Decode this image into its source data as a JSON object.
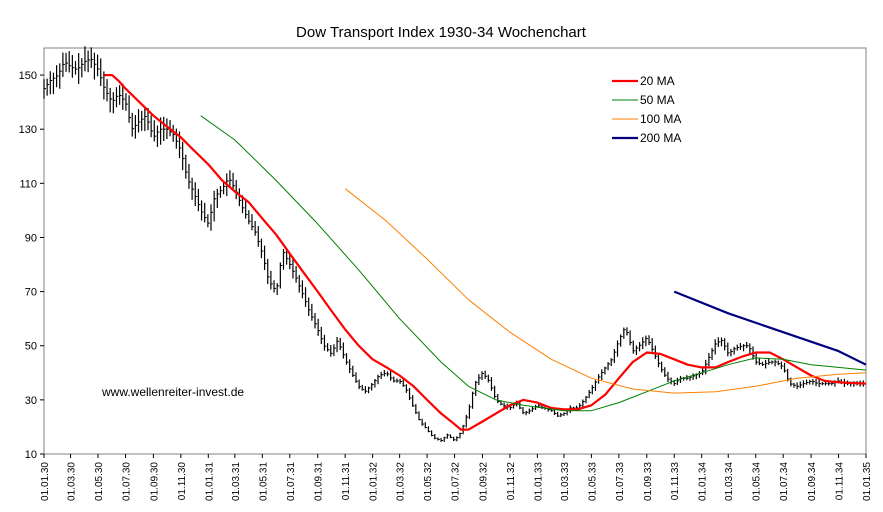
{
  "chart_data": {
    "type": "line",
    "title": "Dow Transport Index 1930-34 Wochenchart",
    "watermark": "www.wellenreiter-invest.de",
    "xlabel": "",
    "ylabel": "",
    "ylim": [
      10,
      160
    ],
    "yticks": [
      10,
      30,
      50,
      70,
      90,
      110,
      130,
      150
    ],
    "xlim": [
      "1930-01-01",
      "1935-01-01"
    ],
    "xticks": [
      "01.01.30",
      "01.03.30",
      "01.05.30",
      "01.07.30",
      "01.09.30",
      "01.11.30",
      "01.01.31",
      "01.03.31",
      "01.05.31",
      "01.07.31",
      "01.09.31",
      "01.11.31",
      "01.01.32",
      "01.03.32",
      "01.05.32",
      "01.07.32",
      "01.09.32",
      "01.11.32",
      "01.01.33",
      "01.03.33",
      "01.05.33",
      "01.07.33",
      "01.09.33",
      "01.11.33",
      "01.01.34",
      "01.03.34",
      "01.05.34",
      "01.07.34",
      "01.09.34",
      "01.11.34",
      "01.01.35"
    ],
    "grid": false,
    "legend": "top-right",
    "price_color": "#000000",
    "price": [
      [
        "1930-01-01",
        145
      ],
      [
        "1930-01-15",
        148
      ],
      [
        "1930-02-01",
        150
      ],
      [
        "1930-02-15",
        155
      ],
      [
        "1930-03-01",
        153
      ],
      [
        "1930-03-15",
        152
      ],
      [
        "1930-04-01",
        155
      ],
      [
        "1930-04-15",
        156
      ],
      [
        "1930-05-01",
        152
      ],
      [
        "1930-05-15",
        145
      ],
      [
        "1930-06-01",
        140
      ],
      [
        "1930-06-15",
        143
      ],
      [
        "1930-07-01",
        140
      ],
      [
        "1930-07-15",
        130
      ],
      [
        "1930-08-01",
        133
      ],
      [
        "1930-08-15",
        135
      ],
      [
        "1930-09-01",
        127
      ],
      [
        "1930-09-15",
        130
      ],
      [
        "1930-10-01",
        130
      ],
      [
        "1930-10-15",
        128
      ],
      [
        "1930-11-01",
        122
      ],
      [
        "1930-11-15",
        112
      ],
      [
        "1930-12-01",
        106
      ],
      [
        "1930-12-15",
        100
      ],
      [
        "1931-01-01",
        95
      ],
      [
        "1931-01-15",
        105
      ],
      [
        "1931-02-01",
        108
      ],
      [
        "1931-02-15",
        112
      ],
      [
        "1931-03-01",
        108
      ],
      [
        "1931-03-15",
        102
      ],
      [
        "1931-04-01",
        96
      ],
      [
        "1931-04-15",
        92
      ],
      [
        "1931-05-01",
        84
      ],
      [
        "1931-05-15",
        74
      ],
      [
        "1931-06-01",
        70
      ],
      [
        "1931-06-15",
        85
      ],
      [
        "1931-07-01",
        80
      ],
      [
        "1931-07-15",
        75
      ],
      [
        "1931-08-01",
        68
      ],
      [
        "1931-08-15",
        62
      ],
      [
        "1931-09-01",
        56
      ],
      [
        "1931-09-15",
        50
      ],
      [
        "1931-10-01",
        47
      ],
      [
        "1931-10-15",
        52
      ],
      [
        "1931-11-01",
        45
      ],
      [
        "1931-11-15",
        40
      ],
      [
        "1931-12-01",
        35
      ],
      [
        "1931-12-15",
        33
      ],
      [
        "1932-01-01",
        36
      ],
      [
        "1932-01-15",
        39
      ],
      [
        "1932-02-01",
        40
      ],
      [
        "1932-02-15",
        37
      ],
      [
        "1932-03-01",
        37
      ],
      [
        "1932-03-15",
        34
      ],
      [
        "1932-04-01",
        27
      ],
      [
        "1932-04-15",
        22
      ],
      [
        "1932-05-01",
        19
      ],
      [
        "1932-05-15",
        16
      ],
      [
        "1932-06-01",
        15
      ],
      [
        "1932-06-15",
        17
      ],
      [
        "1932-07-01",
        15
      ],
      [
        "1932-07-15",
        18
      ],
      [
        "1932-08-01",
        26
      ],
      [
        "1932-08-15",
        36
      ],
      [
        "1932-09-01",
        40
      ],
      [
        "1932-09-15",
        37
      ],
      [
        "1932-10-01",
        30
      ],
      [
        "1932-10-15",
        28
      ],
      [
        "1932-11-01",
        27
      ],
      [
        "1932-11-15",
        29
      ],
      [
        "1932-12-01",
        25
      ],
      [
        "1932-12-15",
        26
      ],
      [
        "1933-01-01",
        28
      ],
      [
        "1933-01-15",
        27
      ],
      [
        "1933-02-01",
        26
      ],
      [
        "1933-02-15",
        24
      ],
      [
        "1933-03-01",
        25
      ],
      [
        "1933-03-15",
        27
      ],
      [
        "1933-04-01",
        27
      ],
      [
        "1933-04-15",
        30
      ],
      [
        "1933-05-01",
        34
      ],
      [
        "1933-05-15",
        38
      ],
      [
        "1933-06-01",
        42
      ],
      [
        "1933-06-15",
        45
      ],
      [
        "1933-07-01",
        52
      ],
      [
        "1933-07-15",
        57
      ],
      [
        "1933-08-01",
        48
      ],
      [
        "1933-08-15",
        50
      ],
      [
        "1933-09-01",
        53
      ],
      [
        "1933-09-15",
        48
      ],
      [
        "1933-10-01",
        42
      ],
      [
        "1933-10-15",
        38
      ],
      [
        "1933-11-01",
        36
      ],
      [
        "1933-11-15",
        38
      ],
      [
        "1933-12-01",
        38
      ],
      [
        "1933-12-15",
        39
      ],
      [
        "1934-01-01",
        40
      ],
      [
        "1934-01-15",
        45
      ],
      [
        "1934-02-01",
        51
      ],
      [
        "1934-02-15",
        52
      ],
      [
        "1934-03-01",
        47
      ],
      [
        "1934-03-15",
        49
      ],
      [
        "1934-04-01",
        50
      ],
      [
        "1934-04-15",
        50
      ],
      [
        "1934-05-01",
        44
      ],
      [
        "1934-05-15",
        43
      ],
      [
        "1934-06-01",
        44
      ],
      [
        "1934-06-15",
        44
      ],
      [
        "1934-07-01",
        42
      ],
      [
        "1934-07-15",
        36
      ],
      [
        "1934-08-01",
        35
      ],
      [
        "1934-08-15",
        36
      ],
      [
        "1934-09-01",
        37
      ],
      [
        "1934-09-15",
        36
      ],
      [
        "1934-10-01",
        36
      ],
      [
        "1934-10-15",
        36
      ],
      [
        "1934-11-01",
        37
      ],
      [
        "1934-11-15",
        36
      ],
      [
        "1934-12-01",
        36
      ],
      [
        "1934-12-15",
        36
      ],
      [
        "1935-01-01",
        36
      ]
    ],
    "series": [
      {
        "name": "20 MA",
        "color": "#ff0000",
        "width": 2.2,
        "points": [
          [
            "1930-05-15",
            150
          ],
          [
            "1930-06-01",
            150
          ],
          [
            "1930-06-15",
            148
          ],
          [
            "1930-07-01",
            145
          ],
          [
            "1930-08-01",
            140
          ],
          [
            "1930-09-01",
            135
          ],
          [
            "1930-10-01",
            131
          ],
          [
            "1930-11-01",
            127
          ],
          [
            "1930-12-01",
            122
          ],
          [
            "1931-01-01",
            117
          ],
          [
            "1931-02-01",
            111
          ],
          [
            "1931-02-15",
            109
          ],
          [
            "1931-03-01",
            107
          ],
          [
            "1931-04-01",
            103
          ],
          [
            "1931-05-01",
            97
          ],
          [
            "1931-06-01",
            91
          ],
          [
            "1931-07-01",
            84
          ],
          [
            "1931-08-01",
            77
          ],
          [
            "1931-09-01",
            70
          ],
          [
            "1931-10-01",
            63
          ],
          [
            "1931-11-01",
            56
          ],
          [
            "1931-12-01",
            50
          ],
          [
            "1932-01-01",
            45
          ],
          [
            "1932-02-01",
            42
          ],
          [
            "1932-03-01",
            39
          ],
          [
            "1932-04-01",
            35
          ],
          [
            "1932-05-01",
            30
          ],
          [
            "1932-06-01",
            25
          ],
          [
            "1932-07-01",
            21
          ],
          [
            "1932-07-15",
            19
          ],
          [
            "1932-08-01",
            19
          ],
          [
            "1932-09-01",
            22
          ],
          [
            "1932-10-01",
            25
          ],
          [
            "1932-11-01",
            28
          ],
          [
            "1932-12-01",
            30
          ],
          [
            "1933-01-01",
            29
          ],
          [
            "1933-02-01",
            27
          ],
          [
            "1933-03-01",
            26.5
          ],
          [
            "1933-04-01",
            26.5
          ],
          [
            "1933-05-01",
            28
          ],
          [
            "1933-06-01",
            32
          ],
          [
            "1933-07-01",
            38
          ],
          [
            "1933-08-01",
            44
          ],
          [
            "1933-09-01",
            47.5
          ],
          [
            "1933-10-01",
            47
          ],
          [
            "1933-11-01",
            45
          ],
          [
            "1933-12-01",
            43
          ],
          [
            "1934-01-01",
            42
          ],
          [
            "1934-02-01",
            42
          ],
          [
            "1934-03-01",
            44
          ],
          [
            "1934-04-01",
            46
          ],
          [
            "1934-05-01",
            47.5
          ],
          [
            "1934-06-01",
            47.5
          ],
          [
            "1934-07-01",
            45
          ],
          [
            "1934-08-01",
            42
          ],
          [
            "1934-09-01",
            39
          ],
          [
            "1934-10-01",
            37
          ],
          [
            "1934-11-01",
            36.5
          ],
          [
            "1935-01-01",
            36
          ]
        ]
      },
      {
        "name": "50 MA",
        "color": "#008000",
        "width": 1,
        "points": [
          [
            "1930-12-15",
            135
          ],
          [
            "1931-03-01",
            126
          ],
          [
            "1931-06-01",
            111
          ],
          [
            "1931-09-01",
            95
          ],
          [
            "1931-12-01",
            78
          ],
          [
            "1932-03-01",
            60
          ],
          [
            "1932-06-01",
            44
          ],
          [
            "1932-08-01",
            35
          ],
          [
            "1932-10-01",
            30
          ],
          [
            "1932-12-01",
            28
          ],
          [
            "1933-03-01",
            26
          ],
          [
            "1933-05-01",
            26
          ],
          [
            "1933-07-01",
            29
          ],
          [
            "1933-09-01",
            33
          ],
          [
            "1933-11-01",
            37
          ],
          [
            "1934-01-01",
            40
          ],
          [
            "1934-03-01",
            43
          ],
          [
            "1934-05-01",
            45.5
          ],
          [
            "1934-07-01",
            45
          ],
          [
            "1934-09-01",
            43
          ],
          [
            "1934-11-01",
            42
          ],
          [
            "1935-01-01",
            41
          ]
        ]
      },
      {
        "name": "100 MA",
        "color": "#ff8000",
        "width": 1,
        "points": [
          [
            "1931-11-01",
            108
          ],
          [
            "1932-02-01",
            96
          ],
          [
            "1932-05-01",
            82
          ],
          [
            "1932-08-01",
            67
          ],
          [
            "1932-11-01",
            55
          ],
          [
            "1933-02-01",
            45
          ],
          [
            "1933-05-01",
            38
          ],
          [
            "1933-08-01",
            34
          ],
          [
            "1933-11-01",
            32.5
          ],
          [
            "1934-02-01",
            33
          ],
          [
            "1934-05-01",
            35
          ],
          [
            "1934-08-01",
            38
          ],
          [
            "1934-11-01",
            39.5
          ],
          [
            "1935-01-01",
            40
          ]
        ]
      },
      {
        "name": "200 MA",
        "color": "#000080",
        "width": 2.2,
        "points": [
          [
            "1933-11-01",
            70
          ],
          [
            "1934-03-01",
            62
          ],
          [
            "1934-07-01",
            55
          ],
          [
            "1934-11-01",
            48
          ],
          [
            "1935-01-01",
            43
          ]
        ]
      }
    ]
  }
}
